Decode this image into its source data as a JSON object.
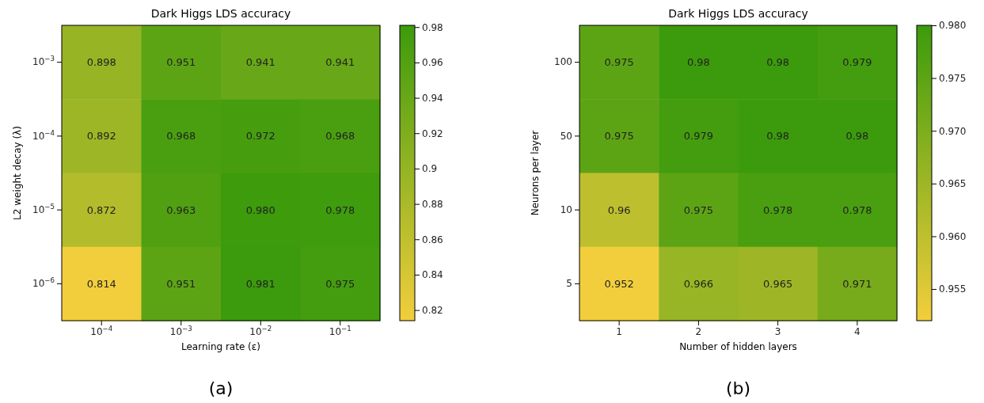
{
  "chart_data": [
    {
      "type": "heatmap",
      "title": "Dark Higgs LDS accuracy",
      "xlabel": "Learning rate (ε)",
      "ylabel": "L2 weight decay (λ)",
      "categories": [
        "10$^{−4}$",
        "10$^{−3}$",
        "10$^{−2}$",
        "10$^{−1}$"
      ],
      "y_categories": [
        "10$^{−3}$",
        "10$^{−4}$",
        "10$^{−5}$",
        "10$^{−6}$"
      ],
      "cells": [
        [
          0.898,
          0.951,
          0.941,
          0.941
        ],
        [
          0.892,
          0.968,
          0.972,
          0.968
        ],
        [
          0.872,
          0.963,
          0.98,
          0.978
        ],
        [
          0.814,
          0.951,
          0.981,
          0.975
        ]
      ],
      "cell_labels": [
        [
          "0.898",
          "0.951",
          "0.941",
          "0.941"
        ],
        [
          "0.892",
          "0.968",
          "0.972",
          "0.968"
        ],
        [
          "0.872",
          "0.963",
          "0.980",
          "0.978"
        ],
        [
          "0.814",
          "0.951",
          "0.981",
          "0.975"
        ]
      ],
      "colors": [
        "#f2ce3c",
        "#3c9b0c"
      ],
      "clim": [
        0.814,
        0.981
      ],
      "cticks": [
        0.82,
        0.84,
        0.86,
        0.88,
        0.9,
        0.92,
        0.94,
        0.96,
        0.98
      ],
      "annotations": [
        "(a)"
      ]
    },
    {
      "type": "heatmap",
      "title": "Dark Higgs LDS accuracy",
      "xlabel": "Number of hidden layers",
      "ylabel": "Neurons per layer",
      "categories": [
        "1",
        "2",
        "3",
        "4"
      ],
      "y_categories": [
        "100",
        "50",
        "10",
        "5"
      ],
      "cells": [
        [
          0.975,
          0.98,
          0.98,
          0.979
        ],
        [
          0.975,
          0.979,
          0.98,
          0.98
        ],
        [
          0.96,
          0.975,
          0.978,
          0.978
        ],
        [
          0.952,
          0.966,
          0.965,
          0.971
        ]
      ],
      "cell_labels": [
        [
          "0.975",
          "0.98",
          "0.98",
          "0.979"
        ],
        [
          "0.975",
          "0.979",
          "0.98",
          "0.98"
        ],
        [
          "0.96",
          "0.975",
          "0.978",
          "0.978"
        ],
        [
          "0.952",
          "0.966",
          "0.965",
          "0.971"
        ]
      ],
      "colors": [
        "#f2ce3c",
        "#3c9b0c"
      ],
      "clim": [
        0.952,
        0.98
      ],
      "cticks": [
        {
          "value": 0.955,
          "label": "0.955"
        },
        {
          "value": 0.96,
          "label": "0.960"
        },
        {
          "value": 0.965,
          "label": "0.965"
        },
        {
          "value": 0.97,
          "label": "0.970"
        },
        {
          "value": 0.975,
          "label": "0.975"
        },
        {
          "value": 0.98,
          "label": "0.980"
        }
      ],
      "annotations": [
        "(b)"
      ]
    }
  ]
}
